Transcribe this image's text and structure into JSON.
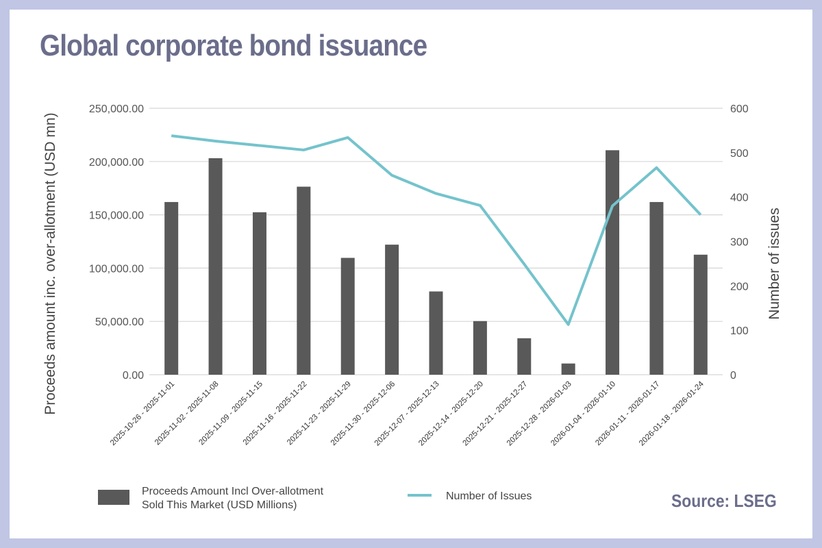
{
  "title": "Global corporate bond issuance",
  "source": "Source: LSEG",
  "chart_data": {
    "type": "bar+line",
    "categories": [
      "2025-10-26 - 2025-11-01",
      "2025-11-02 - 2025-11-08",
      "2025-11-09 - 2025-11-15",
      "2025-11-16 - 2025-11-22",
      "2025-11-23 - 2025-11-29",
      "2025-11-30 - 2025-12-06",
      "2025-12-07 - 2025-12-13",
      "2025-12-14 - 2025-12-20",
      "2025-12-21 - 2025-12-27",
      "2025-12-28 - 2026-01-03",
      "2026-01-04 - 2026-01-10",
      "2026-01-11 - 2026-01-17",
      "2026-01-18 - 2026-01-24"
    ],
    "series": [
      {
        "name": "Proceeds Amount Incl Over-allotment Sold This Market (USD Millions)",
        "type": "bar",
        "axis": "left",
        "color": "#595959",
        "values": [
          162000,
          203100,
          152400,
          176400,
          109600,
          122000,
          78100,
          50300,
          34200,
          10500,
          210600,
          162000,
          112600
        ]
      },
      {
        "name": "Number of Issues",
        "type": "line",
        "axis": "right",
        "color": "#74c3cc",
        "values": [
          538,
          526,
          516,
          506,
          534,
          449,
          408,
          381,
          249,
          113,
          380,
          466,
          360
        ]
      }
    ],
    "ylabel": "Proceeds amount inc. over-allotment (USD mn)",
    "y2label": "Number of issues",
    "ylim": [
      0,
      250000
    ],
    "y2lim": [
      0,
      600
    ],
    "yticks": [
      "0.00",
      "50,000.00",
      "100,000.00",
      "150,000.00",
      "200,000.00",
      "250,000.00"
    ],
    "y2ticks": [
      "0",
      "100",
      "200",
      "300",
      "400",
      "500",
      "600"
    ],
    "legend_position": "bottom",
    "grid": true
  }
}
